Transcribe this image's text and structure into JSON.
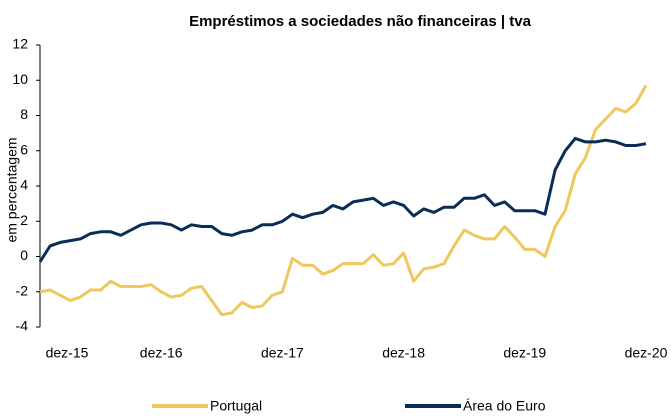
{
  "chart_data": {
    "type": "line",
    "title": "Empréstimos a sociedades não financeiras | tva",
    "y_label": "em percentagem",
    "categories": [
      "dez-15",
      null,
      null,
      null,
      null,
      null,
      null,
      null,
      null,
      null,
      null,
      null,
      "dez-16",
      null,
      null,
      null,
      null,
      null,
      null,
      null,
      null,
      null,
      null,
      null,
      "dez-17",
      null,
      null,
      null,
      null,
      null,
      null,
      null,
      null,
      null,
      null,
      null,
      "dez-18",
      null,
      null,
      null,
      null,
      null,
      null,
      null,
      null,
      null,
      null,
      null,
      "dez-19",
      null,
      null,
      null,
      null,
      null,
      null,
      null,
      null,
      null,
      null,
      null,
      "dez-20"
    ],
    "series": [
      {
        "name": "Portugal",
        "color": "#f0c75e",
        "values": [
          -2.0,
          -1.9,
          -2.2,
          -2.5,
          -2.3,
          -1.9,
          -1.9,
          -1.4,
          -1.7,
          -1.7,
          -1.7,
          -1.6,
          -2.0,
          -2.3,
          -2.2,
          -1.8,
          -1.7,
          -2.5,
          -3.3,
          -3.2,
          -2.6,
          -2.9,
          -2.8,
          -2.2,
          -2.0,
          -0.1,
          -0.5,
          -0.5,
          -1.0,
          -0.8,
          -0.4,
          -0.4,
          -0.4,
          0.1,
          -0.5,
          -0.4,
          0.2,
          -1.4,
          -0.7,
          -0.6,
          -0.4,
          0.6,
          1.5,
          1.2,
          1.0,
          1.0,
          1.7,
          1.1,
          0.4,
          0.4,
          0.0,
          1.7,
          2.6,
          4.7,
          5.6,
          7.2,
          7.8,
          8.4,
          8.2,
          8.7,
          9.7
        ]
      },
      {
        "name": "Área do Euro",
        "color": "#0a2d57",
        "values": [
          -0.3,
          0.6,
          0.8,
          0.9,
          1.0,
          1.3,
          1.4,
          1.4,
          1.2,
          1.5,
          1.8,
          1.9,
          1.9,
          1.8,
          1.5,
          1.8,
          1.7,
          1.7,
          1.3,
          1.2,
          1.4,
          1.5,
          1.8,
          1.8,
          2.0,
          2.4,
          2.2,
          2.4,
          2.5,
          2.9,
          2.7,
          3.1,
          3.2,
          3.3,
          2.9,
          3.1,
          2.9,
          2.3,
          2.7,
          2.5,
          2.8,
          2.8,
          3.3,
          3.3,
          3.5,
          2.9,
          3.1,
          2.6,
          2.6,
          2.6,
          2.4,
          4.9,
          6.0,
          6.7,
          6.5,
          6.5,
          6.6,
          6.5,
          6.3,
          6.3,
          6.4
        ]
      }
    ],
    "ylim": [
      -4,
      12
    ],
    "yticks": [
      -4,
      -2,
      0,
      2,
      4,
      6,
      8,
      10,
      12
    ],
    "legend": "bottom"
  }
}
